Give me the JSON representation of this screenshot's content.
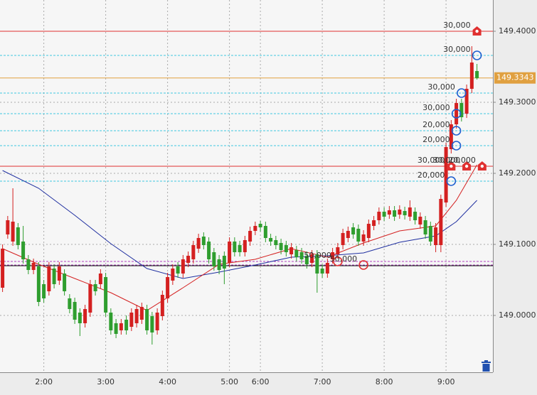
{
  "chart_data": {
    "type": "candlestick",
    "categories": [
      null,
      null,
      null,
      null,
      null,
      null,
      null,
      null,
      "2:00",
      null,
      null,
      null,
      null,
      null,
      null,
      null,
      null,
      null,
      null,
      null,
      "3:00",
      null,
      null,
      null,
      null,
      null,
      null,
      null,
      null,
      null,
      null,
      null,
      "4:00",
      null,
      null,
      null,
      null,
      null,
      null,
      null,
      null,
      null,
      null,
      null,
      "5:00",
      null,
      null,
      null,
      null,
      null,
      "6:00",
      null,
      null,
      null,
      null,
      null,
      null,
      null,
      null,
      null,
      null,
      null,
      "7:00",
      null,
      null,
      null,
      null,
      null,
      null,
      null,
      null,
      null,
      null,
      null,
      "8:00",
      null,
      null,
      null,
      null,
      null,
      null,
      null,
      null,
      null,
      null,
      null,
      "9:00",
      null,
      null,
      null,
      null,
      null,
      null
    ],
    "ohlc": [
      [
        149.039,
        149.1,
        149.033,
        149.094
      ],
      [
        149.114,
        149.14,
        149.108,
        149.134
      ],
      [
        149.104,
        149.179,
        149.098,
        149.132
      ],
      [
        149.124,
        149.13,
        149.093,
        149.099
      ],
      [
        149.104,
        149.126,
        149.073,
        149.079
      ],
      [
        149.079,
        149.085,
        149.058,
        149.064
      ],
      [
        149.064,
        149.08,
        149.058,
        149.074
      ],
      [
        149.069,
        149.075,
        149.013,
        149.019
      ],
      [
        149.044,
        149.05,
        149.018,
        149.024
      ],
      [
        149.034,
        149.075,
        149.028,
        149.069
      ],
      [
        149.066,
        149.072,
        149.038,
        149.044
      ],
      [
        149.049,
        149.075,
        149.043,
        149.069
      ],
      [
        149.059,
        149.065,
        149.028,
        149.034
      ],
      [
        149.024,
        149.03,
        149.003,
        149.009
      ],
      [
        149.019,
        149.025,
        148.988,
        148.994
      ],
      [
        149.004,
        149.01,
        148.971,
        148.989
      ],
      [
        148.989,
        149.015,
        148.983,
        149.009
      ],
      [
        149.004,
        149.05,
        148.998,
        149.044
      ],
      [
        149.044,
        149.05,
        149.028,
        149.034
      ],
      [
        149.044,
        149.065,
        149.038,
        149.059
      ],
      [
        149.054,
        149.06,
        148.998,
        149.004
      ],
      [
        149.004,
        149.01,
        148.973,
        148.979
      ],
      [
        148.989,
        148.995,
        148.968,
        148.974
      ],
      [
        148.979,
        148.995,
        148.973,
        148.989
      ],
      [
        148.994,
        149.0,
        148.973,
        148.979
      ],
      [
        148.984,
        149.01,
        148.978,
        149.004
      ],
      [
        148.989,
        149.015,
        148.983,
        149.009
      ],
      [
        148.994,
        149.018,
        148.988,
        149.012
      ],
      [
        149.009,
        149.015,
        148.973,
        148.979
      ],
      [
        148.999,
        149.005,
        148.959,
        148.976
      ],
      [
        148.979,
        149.01,
        148.973,
        149.004
      ],
      [
        148.999,
        149.035,
        148.993,
        149.029
      ],
      [
        149.024,
        149.06,
        149.018,
        149.054
      ],
      [
        149.049,
        149.072,
        149.043,
        149.066
      ],
      [
        149.069,
        149.075,
        149.053,
        149.059
      ],
      [
        149.059,
        149.085,
        149.053,
        149.079
      ],
      [
        149.074,
        149.09,
        149.068,
        149.084
      ],
      [
        149.079,
        149.105,
        149.073,
        149.099
      ],
      [
        149.094,
        149.115,
        149.088,
        149.109
      ],
      [
        149.111,
        149.117,
        149.093,
        149.099
      ],
      [
        149.104,
        149.11,
        149.073,
        149.079
      ],
      [
        149.089,
        149.095,
        149.063,
        149.069
      ],
      [
        149.079,
        149.085,
        149.058,
        149.064
      ],
      [
        149.084,
        149.09,
        149.044,
        149.066
      ],
      [
        149.074,
        149.11,
        149.068,
        149.104
      ],
      [
        149.104,
        149.11,
        149.083,
        149.089
      ],
      [
        149.099,
        149.105,
        149.083,
        149.089
      ],
      [
        149.089,
        149.112,
        149.083,
        149.106
      ],
      [
        149.104,
        149.125,
        149.098,
        149.119
      ],
      [
        149.119,
        149.132,
        149.113,
        149.126
      ],
      [
        149.129,
        149.133,
        149.118,
        149.124
      ],
      [
        149.126,
        149.132,
        149.103,
        149.109
      ],
      [
        149.109,
        149.115,
        149.098,
        149.104
      ],
      [
        149.106,
        149.112,
        149.093,
        149.099
      ],
      [
        149.102,
        149.108,
        149.086,
        149.092
      ],
      [
        149.099,
        149.105,
        149.083,
        149.089
      ],
      [
        149.086,
        149.102,
        149.08,
        149.096
      ],
      [
        149.092,
        149.098,
        149.076,
        149.082
      ],
      [
        149.089,
        149.095,
        149.073,
        149.079
      ],
      [
        149.084,
        149.09,
        149.066,
        149.072
      ],
      [
        149.074,
        149.092,
        149.068,
        149.086
      ],
      [
        149.086,
        149.092,
        149.032,
        149.059
      ],
      [
        149.066,
        149.072,
        149.053,
        149.059
      ],
      [
        149.059,
        149.08,
        149.053,
        149.074
      ],
      [
        149.079,
        149.095,
        149.073,
        149.089
      ],
      [
        149.086,
        149.102,
        149.08,
        149.096
      ],
      [
        149.099,
        149.122,
        149.093,
        149.116
      ],
      [
        149.109,
        149.125,
        149.103,
        149.119
      ],
      [
        149.124,
        149.13,
        149.108,
        149.114
      ],
      [
        149.122,
        149.128,
        149.098,
        149.104
      ],
      [
        149.104,
        149.12,
        149.098,
        149.114
      ],
      [
        149.109,
        149.135,
        149.103,
        149.129
      ],
      [
        149.126,
        149.14,
        149.12,
        149.134
      ],
      [
        149.134,
        149.152,
        149.128,
        149.146
      ],
      [
        149.146,
        149.152,
        149.133,
        149.139
      ],
      [
        149.142,
        149.154,
        149.136,
        149.148
      ],
      [
        149.148,
        149.154,
        149.133,
        149.139
      ],
      [
        149.142,
        149.155,
        149.136,
        149.149
      ],
      [
        149.147,
        149.153,
        149.135,
        149.141
      ],
      [
        149.139,
        149.162,
        149.133,
        149.152
      ],
      [
        149.146,
        149.152,
        149.128,
        149.134
      ],
      [
        149.128,
        149.145,
        149.122,
        149.139
      ],
      [
        149.134,
        149.14,
        149.108,
        149.114
      ],
      [
        149.126,
        149.132,
        149.098,
        149.104
      ],
      [
        149.099,
        149.13,
        149.089,
        149.124
      ],
      [
        149.099,
        149.17,
        149.089,
        149.164
      ],
      [
        149.159,
        149.243,
        149.153,
        149.237
      ],
      [
        149.234,
        149.275,
        149.228,
        149.269
      ],
      [
        149.269,
        149.305,
        149.263,
        149.299
      ],
      [
        149.299,
        149.305,
        149.273,
        149.279
      ],
      [
        149.284,
        149.325,
        149.278,
        149.319
      ],
      [
        149.319,
        149.379,
        149.313,
        149.356
      ],
      [
        149.344,
        149.354,
        149.332,
        149.334
      ]
    ],
    "up_color": "#d42020",
    "down_color": "#2f9e2f",
    "moving_averages": [
      {
        "color": "#1f2fa0",
        "x": [
          0,
          7,
          14,
          21,
          28,
          35,
          42,
          49,
          56,
          63,
          70,
          77,
          84,
          88,
          92
        ],
        "values": [
          149.204,
          149.179,
          149.141,
          149.101,
          149.066,
          149.052,
          149.061,
          149.071,
          149.082,
          149.084,
          149.088,
          149.103,
          149.112,
          149.132,
          149.162
        ]
      },
      {
        "color": "#d42020",
        "x": [
          0,
          7,
          14,
          21,
          28,
          35,
          42,
          49,
          56,
          63,
          70,
          77,
          84,
          88,
          92
        ],
        "values": [
          149.094,
          149.072,
          149.052,
          149.032,
          149.007,
          149.039,
          149.072,
          149.079,
          149.094,
          149.082,
          149.102,
          149.119,
          149.126,
          149.162,
          149.212
        ]
      }
    ],
    "ylim": [
      148.92,
      149.444
    ],
    "yticks": [
      {
        "value": 149.0,
        "label": "149.0000"
      },
      {
        "value": 149.1,
        "label": "149.1000"
      },
      {
        "value": 149.2,
        "label": "149.2000"
      },
      {
        "value": 149.3,
        "label": "149.3000"
      },
      {
        "value": 149.4,
        "label": "149.4000"
      }
    ],
    "grid": true,
    "current_price": 149.3343,
    "current_price_color": "#e0a040",
    "levels": [
      {
        "value": 149.07,
        "color": "#000000"
      }
    ],
    "orders": [
      {
        "price": 149.4,
        "index": 92,
        "label": "30,000",
        "marker": "house",
        "color": "#e03030",
        "line_color": "#e03030",
        "line_style": "solid"
      },
      {
        "price": 149.366,
        "index": 92,
        "label": "30,000",
        "marker": "circle",
        "color": "#2060d0",
        "line_color": "#40c8e0",
        "line_style": "dashed"
      },
      {
        "price": 149.313,
        "index": 89,
        "label": "30,000",
        "marker": "circle",
        "color": "#2060d0",
        "line_color": "#40c8e0",
        "line_style": "dashed"
      },
      {
        "price": 149.284,
        "index": 88,
        "label": "30,000",
        "marker": "circle",
        "color": "#2060d0",
        "line_color": "#40c8e0",
        "line_style": "dashed"
      },
      {
        "price": 149.26,
        "index": 88,
        "label": "20,000",
        "marker": "circle",
        "color": "#2060d0",
        "line_color": "#40c8e0",
        "line_style": "dashed"
      },
      {
        "price": 149.239,
        "index": 88,
        "label": "20,000",
        "marker": "circle",
        "color": "#2060d0",
        "line_color": "#40c8e0",
        "line_style": "dashed"
      },
      {
        "price": 149.189,
        "index": 87,
        "label": "20,000",
        "marker": "circle",
        "color": "#2060d0",
        "line_color": "#40c8e0",
        "line_style": "dashed"
      },
      {
        "price": 149.21,
        "index": 87,
        "label": "30,000",
        "marker": "house",
        "color": "#e03030",
        "line_color": "#e03030",
        "line_style": "solid"
      },
      {
        "price": 149.21,
        "index": 90,
        "label": "30,000",
        "marker": "house",
        "color": "#e03030",
        "line_color": "#e03030",
        "line_style": "solid"
      },
      {
        "price": 149.21,
        "index": 93,
        "label": "20,000",
        "marker": "house",
        "color": "#e03030",
        "line_color": "#e03030",
        "line_style": "solid"
      },
      {
        "price": 149.076,
        "index": 65,
        "label": "50,000",
        "marker": "circle",
        "color": "#e03030",
        "line_color": "#b040c0",
        "line_style": "dashed"
      },
      {
        "price": 149.071,
        "index": 70,
        "label": "50,000",
        "marker": "circle",
        "color": "#e03030",
        "line_color": "#b040c0",
        "line_style": "dashed"
      }
    ]
  }
}
